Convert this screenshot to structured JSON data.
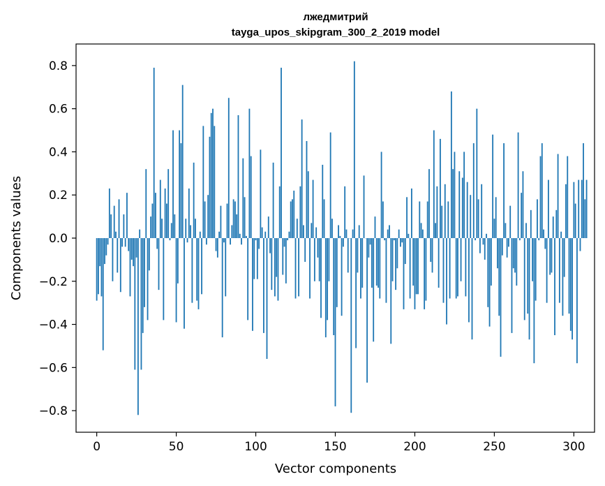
{
  "chart_data": {
    "type": "bar",
    "title": "лжедмитрий",
    "subtitle": "tayga_upos_skipgram_300_2_2019 model",
    "xlabel": "Vector components",
    "ylabel": "Components values",
    "xlim": [
      -13,
      313
    ],
    "ylim": [
      -0.9,
      0.9
    ],
    "xticks": [
      0,
      50,
      100,
      150,
      200,
      250,
      300
    ],
    "yticks": [
      -0.8,
      -0.6,
      -0.4,
      -0.2,
      0.0,
      0.2,
      0.4,
      0.6,
      0.8
    ],
    "ytick_labels": [
      "−0.8",
      "−0.6",
      "−0.4",
      "−0.2",
      "0.0",
      "0.2",
      "0.4",
      "0.6",
      "0.8"
    ],
    "bar_color": "#1f77b4",
    "grid": false,
    "values": [
      -0.29,
      -0.26,
      -0.13,
      -0.27,
      -0.52,
      -0.12,
      -0.08,
      -0.03,
      0.23,
      0.11,
      -0.2,
      0.15,
      0.03,
      -0.16,
      0.18,
      -0.25,
      -0.04,
      0.11,
      -0.04,
      0.21,
      -0.06,
      -0.27,
      -0.1,
      -0.13,
      -0.61,
      -0.09,
      -0.82,
      0.04,
      -0.61,
      -0.44,
      -0.32,
      0.32,
      -0.38,
      -0.15,
      0.1,
      0.16,
      0.79,
      0.21,
      -0.05,
      -0.24,
      0.27,
      0.09,
      -0.38,
      0.23,
      0.16,
      0.32,
      -0.01,
      0.07,
      0.5,
      0.11,
      -0.39,
      -0.21,
      0.5,
      0.44,
      0.71,
      -0.42,
      0.09,
      -0.02,
      0.23,
      0.06,
      -0.3,
      0.35,
      0.09,
      -0.29,
      -0.33,
      0.03,
      -0.26,
      0.52,
      0.17,
      -0.03,
      0.2,
      0.47,
      0.58,
      0.6,
      0.52,
      -0.06,
      -0.09,
      0.03,
      0.15,
      -0.46,
      -0.02,
      -0.27,
      0.16,
      0.65,
      -0.03,
      0.06,
      0.18,
      0.17,
      0.11,
      0.57,
      0.02,
      -0.03,
      0.37,
      0.19,
      0.01,
      -0.38,
      0.6,
      0.38,
      -0.43,
      -0.19,
      -0.01,
      -0.19,
      -0.05,
      0.41,
      0.05,
      -0.44,
      0.03,
      -0.56,
      0.1,
      -0.07,
      -0.24,
      0.35,
      -0.27,
      -0.18,
      -0.29,
      0.24,
      0.79,
      -0.17,
      -0.04,
      -0.21,
      -0.01,
      0.03,
      0.17,
      0.18,
      0.22,
      -0.28,
      0.09,
      -0.27,
      0.24,
      0.55,
      0.06,
      -0.11,
      0.45,
      0.31,
      -0.28,
      0.07,
      0.27,
      -0.2,
      0.05,
      -0.09,
      -0.2,
      -0.37,
      0.34,
      0.18,
      -0.46,
      -0.38,
      -0.2,
      0.49,
      0.09,
      -0.45,
      -0.78,
      -0.32,
      0.06,
      0.01,
      -0.36,
      -0.04,
      0.24,
      0.04,
      -0.16,
      0.0,
      -0.81,
      0.04,
      0.82,
      -0.51,
      -0.16,
      0.06,
      -0.28,
      -0.23,
      0.29,
      0.0,
      -0.67,
      -0.09,
      -0.03,
      -0.23,
      -0.48,
      0.1,
      -0.22,
      -0.23,
      -0.28,
      0.4,
      0.17,
      -0.01,
      -0.3,
      0.04,
      0.06,
      -0.49,
      -0.2,
      -0.01,
      -0.24,
      -0.14,
      0.04,
      -0.04,
      -0.02,
      -0.33,
      -0.12,
      0.19,
      0.02,
      -0.28,
      0.23,
      -0.22,
      -0.33,
      -0.26,
      -0.26,
      0.17,
      0.07,
      0.04,
      -0.33,
      -0.29,
      0.17,
      0.32,
      -0.11,
      -0.16,
      0.5,
      0.07,
      0.24,
      -0.23,
      0.46,
      0.15,
      -0.3,
      0.25,
      -0.4,
      0.17,
      -0.28,
      0.68,
      0.32,
      0.4,
      -0.28,
      -0.27,
      0.31,
      -0.2,
      0.28,
      0.4,
      -0.27,
      0.26,
      -0.39,
      0.2,
      -0.47,
      0.44,
      -0.01,
      0.6,
      0.18,
      -0.07,
      0.25,
      -0.03,
      -0.1,
      0.02,
      -0.32,
      -0.41,
      -0.22,
      0.48,
      0.09,
      0.19,
      -0.14,
      -0.36,
      -0.55,
      -0.08,
      0.44,
      0.07,
      -0.09,
      -0.04,
      0.15,
      -0.44,
      -0.14,
      -0.16,
      -0.22,
      0.49,
      -0.01,
      0.21,
      0.31,
      -0.38,
      0.07,
      -0.35,
      -0.47,
      0.13,
      -0.2,
      -0.58,
      -0.29,
      0.18,
      -0.01,
      0.38,
      0.44,
      0.04,
      -0.05,
      -0.3,
      0.27,
      -0.17,
      -0.16,
      0.1,
      -0.45,
      0.13,
      0.39,
      -0.3,
      0.03,
      -0.36,
      -0.18,
      0.25,
      0.38,
      -0.35,
      -0.43,
      -0.47,
      0.26,
      0.16,
      -0.58,
      0.27,
      -0.06,
      0.27,
      0.44,
      0.18,
      0.27
    ]
  }
}
